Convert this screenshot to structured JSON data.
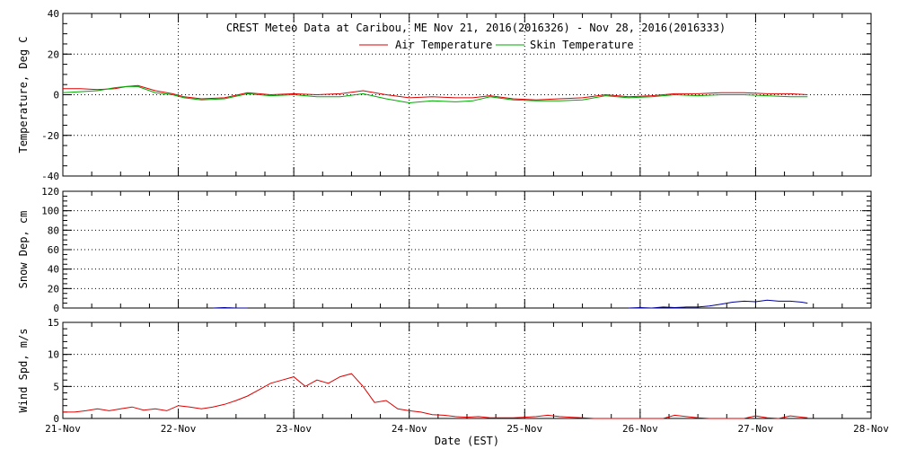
{
  "chart_data": [
    {
      "type": "line",
      "title": "CREST Meteo Data at Caribou, ME   Nov 21, 2016(2016326) - Nov 28, 2016(2016333)",
      "ylabel": "Temperature, Deg C",
      "ylim": [
        -40,
        40
      ],
      "yticks": [
        40,
        20,
        0,
        -20,
        -40
      ],
      "legend": "top-center",
      "grid": true,
      "series": [
        {
          "name": "Air Temperature",
          "color": "#dd0000",
          "x": [
            0.0,
            0.15,
            0.3,
            0.45,
            0.55,
            0.65,
            0.8,
            0.95,
            1.05,
            1.2,
            1.4,
            1.6,
            1.8,
            2.0,
            2.2,
            2.4,
            2.6,
            2.8,
            3.0,
            3.2,
            3.4,
            3.55,
            3.7,
            3.9,
            4.1,
            4.3,
            4.5,
            4.7,
            4.9,
            5.1,
            5.3,
            5.5,
            5.7,
            5.9,
            6.1,
            6.3,
            6.45
          ],
          "y": [
            3,
            3,
            2.5,
            3,
            4,
            4.5,
            2,
            0.5,
            -1,
            -2,
            -1.5,
            1,
            0,
            0.5,
            0,
            0.5,
            2,
            0,
            -1.5,
            -1,
            -1.5,
            -1.5,
            -0.5,
            -2,
            -2.5,
            -2,
            -1.5,
            0,
            -1,
            -0.5,
            0.5,
            0.5,
            1,
            1,
            0.5,
            0.5,
            0
          ]
        },
        {
          "name": "Skin Temperature",
          "color": "#00aa00",
          "x": [
            0.0,
            0.15,
            0.3,
            0.45,
            0.55,
            0.65,
            0.8,
            0.95,
            1.05,
            1.2,
            1.4,
            1.6,
            1.8,
            2.0,
            2.2,
            2.4,
            2.6,
            2.8,
            3.0,
            3.2,
            3.4,
            3.55,
            3.7,
            3.9,
            4.1,
            4.3,
            4.5,
            4.7,
            4.9,
            5.1,
            5.3,
            5.5,
            5.7,
            5.9,
            6.1,
            6.3,
            6.45
          ],
          "y": [
            1,
            1.5,
            2,
            3.5,
            4,
            4,
            1,
            0,
            -1.5,
            -2.5,
            -2,
            0.5,
            -0.5,
            0,
            -1,
            -1,
            0.5,
            -2,
            -4,
            -3,
            -3.5,
            -3,
            -1,
            -2.5,
            -3,
            -3,
            -2.5,
            -0.5,
            -1.5,
            -1,
            0,
            -0.5,
            0,
            0,
            -0.5,
            -1,
            -1
          ]
        }
      ]
    },
    {
      "type": "line",
      "ylabel": "Snow Dep, cm",
      "ylim": [
        0,
        120
      ],
      "yticks": [
        120,
        100,
        80,
        60,
        40,
        20,
        0
      ],
      "grid": true,
      "series": [
        {
          "color": "#000099",
          "segments": [
            {
              "x": [
                1.3,
                1.4,
                1.5,
                1.6
              ],
              "y": [
                0,
                0.5,
                0,
                0
              ]
            },
            {
              "x": [
                4.9,
                5.0,
                5.1,
                5.2,
                5.3,
                5.4,
                5.5,
                5.6,
                5.7,
                5.8,
                5.9,
                6.0,
                6.1,
                6.2,
                6.3,
                6.4,
                6.45
              ],
              "y": [
                0,
                0.5,
                0,
                1,
                0.5,
                1,
                1,
                2,
                4,
                6,
                7,
                6.5,
                8,
                7,
                7,
                6,
                5
              ]
            }
          ]
        }
      ]
    },
    {
      "type": "line",
      "ylabel": "Wind Spd, m/s",
      "xlabel": "Date (EST)",
      "ylim": [
        0,
        15
      ],
      "yticks": [
        15,
        10,
        5,
        0
      ],
      "xticks": [
        "21-Nov",
        "22-Nov",
        "23-Nov",
        "24-Nov",
        "25-Nov",
        "26-Nov",
        "27-Nov",
        "28-Nov"
      ],
      "xlim": [
        "21-Nov",
        "28-Nov"
      ],
      "grid": true,
      "series": [
        {
          "color": "#dd0000",
          "x": [
            0.0,
            0.1,
            0.2,
            0.3,
            0.4,
            0.5,
            0.6,
            0.7,
            0.8,
            0.9,
            1.0,
            1.1,
            1.2,
            1.3,
            1.4,
            1.5,
            1.6,
            1.7,
            1.8,
            1.9,
            2.0,
            2.1,
            2.2,
            2.3,
            2.4,
            2.5,
            2.6,
            2.7,
            2.8,
            2.9,
            3.0,
            3.1,
            3.2,
            3.3,
            3.4,
            3.5,
            3.6,
            3.7,
            3.8,
            3.9,
            4.0,
            4.1,
            4.2,
            4.3,
            4.4,
            4.5,
            4.6,
            4.7,
            4.8,
            4.9,
            5.0,
            5.1,
            5.2,
            5.3,
            5.4,
            5.5,
            5.6,
            5.7,
            5.8,
            5.9,
            6.0,
            6.1,
            6.2,
            6.3,
            6.4,
            6.45
          ],
          "y": [
            1,
            1,
            1.2,
            1.5,
            1.2,
            1.5,
            1.8,
            1.3,
            1.5,
            1.2,
            2,
            1.8,
            1.5,
            1.8,
            2.2,
            2.8,
            3.5,
            4.5,
            5.5,
            6,
            6.5,
            5,
            6,
            5.5,
            6.5,
            7,
            5,
            2.5,
            2.8,
            1.5,
            1.2,
            1,
            0.6,
            0.5,
            0.3,
            0.2,
            0.3,
            0.1,
            0.1,
            0.1,
            0.2,
            0.3,
            0.5,
            0.3,
            0.2,
            0.1,
            0,
            0,
            0,
            0,
            0,
            0,
            0,
            0.5,
            0.3,
            0.1,
            0,
            0,
            0,
            0,
            0.4,
            0.1,
            0,
            0.4,
            0.2,
            0.1
          ]
        }
      ]
    }
  ]
}
